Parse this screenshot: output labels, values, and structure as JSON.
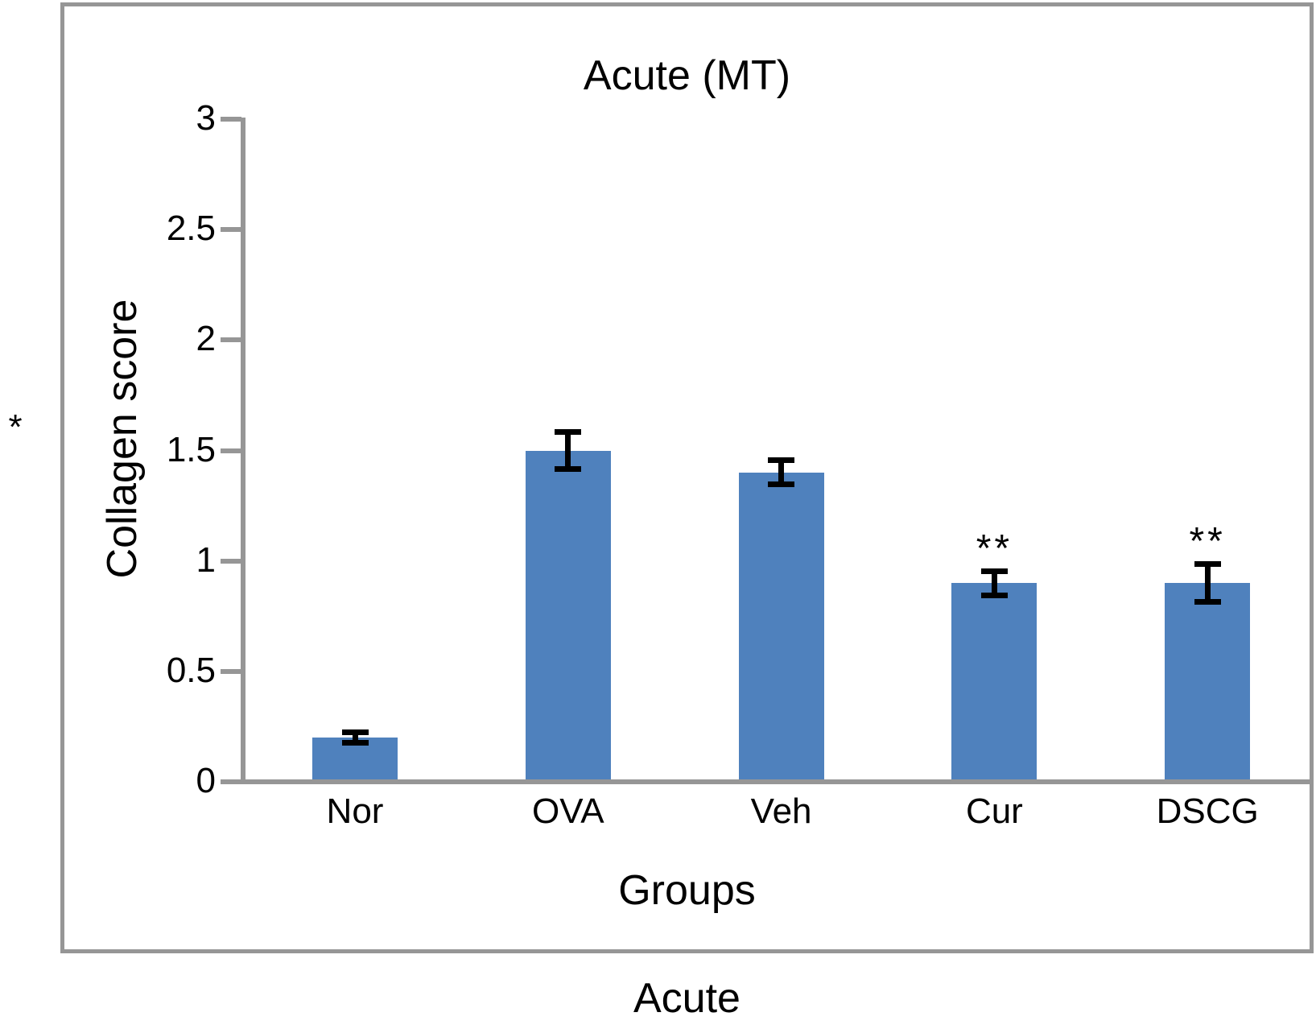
{
  "panel_annotation": "*",
  "footer_label": "Acute",
  "chart_data": {
    "type": "bar",
    "title": "Acute (MT)",
    "xlabel": "Groups",
    "ylabel": "Collagen score",
    "categories": [
      "Nor",
      "OVA",
      "Veh",
      "Cur",
      "DSCG"
    ],
    "values": [
      0.2,
      1.5,
      1.4,
      0.9,
      0.9
    ],
    "errors": [
      0.03,
      0.09,
      0.06,
      0.06,
      0.09
    ],
    "significance": [
      "",
      "",
      "",
      "**",
      "**"
    ],
    "ylim": [
      0,
      3
    ],
    "yticks": [
      0,
      0.5,
      1,
      1.5,
      2,
      2.5,
      3
    ],
    "ytick_labels": [
      "0",
      "0.5",
      "1",
      "1.5",
      "2",
      "2.5",
      "3"
    ],
    "bar_color": "#4F81BD",
    "axis_color": "#969696",
    "error_bar_color": "#000000",
    "grid": false,
    "legend": "none"
  }
}
